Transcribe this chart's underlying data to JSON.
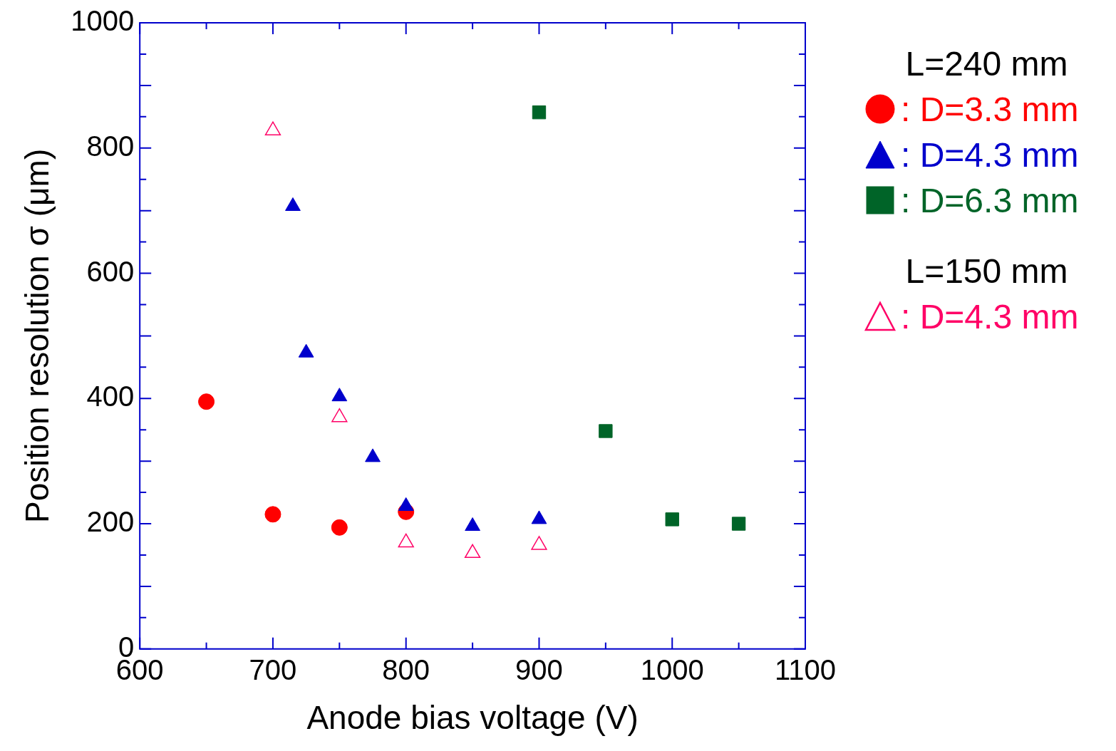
{
  "chart_data": {
    "type": "scatter",
    "xlabel": "Anode bias voltage (V)",
    "ylabel": "Position resolution σ (μm)",
    "xlim": [
      600,
      1100
    ],
    "ylim": [
      0,
      1000
    ],
    "xticks": [
      600,
      {
        "value": 650,
        "label": null
      },
      700,
      {
        "value": 750,
        "label": null
      },
      800,
      {
        "value": 850,
        "label": null
      },
      900,
      {
        "value": 950,
        "label": null
      },
      1000,
      {
        "value": 1050,
        "label": null
      },
      1100
    ],
    "yticks": [
      0,
      {
        "value": 50,
        "label": null
      },
      {
        "value": 100,
        "label": null
      },
      {
        "value": 150,
        "label": null
      },
      200,
      {
        "value": 250,
        "label": null
      },
      {
        "value": 300,
        "label": null
      },
      {
        "value": 350,
        "label": null
      },
      400,
      {
        "value": 450,
        "label": null
      },
      {
        "value": 500,
        "label": null
      },
      {
        "value": 550,
        "label": null
      },
      600,
      {
        "value": 650,
        "label": null
      },
      {
        "value": 700,
        "label": null
      },
      {
        "value": 750,
        "label": null
      },
      800,
      {
        "value": 850,
        "label": null
      },
      {
        "value": 900,
        "label": null
      },
      {
        "value": 950,
        "label": null
      },
      1000
    ],
    "grid": false,
    "legend": "right",
    "legend_title": "L=240 mm",
    "annotations": [
      "L=150 mm"
    ],
    "series": [
      {
        "name": ": D=3.3 mm",
        "color": "#ff0000",
        "marker": "circle",
        "x": [
          650,
          700,
          750,
          800
        ],
        "values": [
          395,
          215,
          194,
          219
        ]
      },
      {
        "name": ": D=4.3 mm",
        "color": "#0000cc",
        "marker": "triangle",
        "x": [
          715,
          725,
          750,
          775,
          800,
          850,
          900
        ],
        "values": [
          707,
          473,
          403,
          306,
          228,
          196,
          207
        ]
      },
      {
        "name": ": D=6.3 mm",
        "color": "#006428",
        "marker": "square",
        "x": [
          900,
          950,
          1000,
          1050
        ],
        "values": [
          857,
          348,
          207,
          200
        ]
      },
      {
        "name": ": D=4.3 mm",
        "color": "#ff0066",
        "marker": "triangle-open",
        "x": [
          700,
          750,
          800,
          850,
          900
        ],
        "values": [
          828,
          370,
          170,
          153,
          166
        ]
      }
    ]
  }
}
